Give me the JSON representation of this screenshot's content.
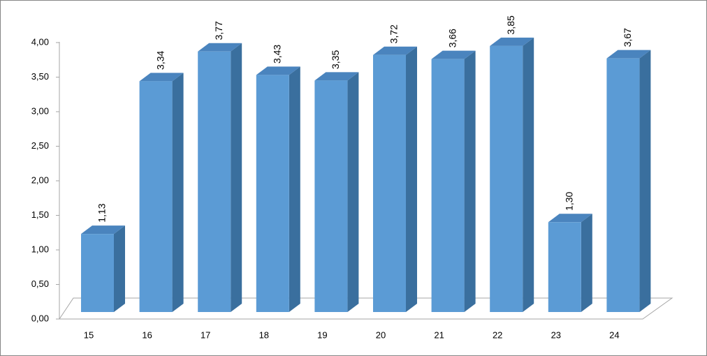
{
  "chart_data": {
    "type": "bar",
    "categories": [
      "15",
      "16",
      "17",
      "18",
      "19",
      "20",
      "21",
      "22",
      "23",
      "24"
    ],
    "values": [
      1.13,
      3.34,
      3.77,
      3.43,
      3.35,
      3.72,
      3.66,
      3.85,
      1.3,
      3.67
    ],
    "value_labels": [
      "1,13",
      "3,34",
      "3,77",
      "3,43",
      "3,35",
      "3,72",
      "3,66",
      "3,85",
      "1,30",
      "3,67"
    ],
    "color": "#5b9bd5",
    "ylim": [
      0,
      4
    ],
    "yticks": [
      {
        "value": 0,
        "label": "0,00"
      },
      {
        "value": 0.5,
        "label": "0,50"
      },
      {
        "value": 1,
        "label": "1,00"
      },
      {
        "value": 1.5,
        "label": "1,50"
      },
      {
        "value": 2,
        "label": "2,00"
      },
      {
        "value": 2.5,
        "label": "2,50"
      },
      {
        "value": 3,
        "label": "3,00"
      },
      {
        "value": 3.5,
        "label": "3,50"
      },
      {
        "value": 4,
        "label": "4,00"
      }
    ]
  }
}
